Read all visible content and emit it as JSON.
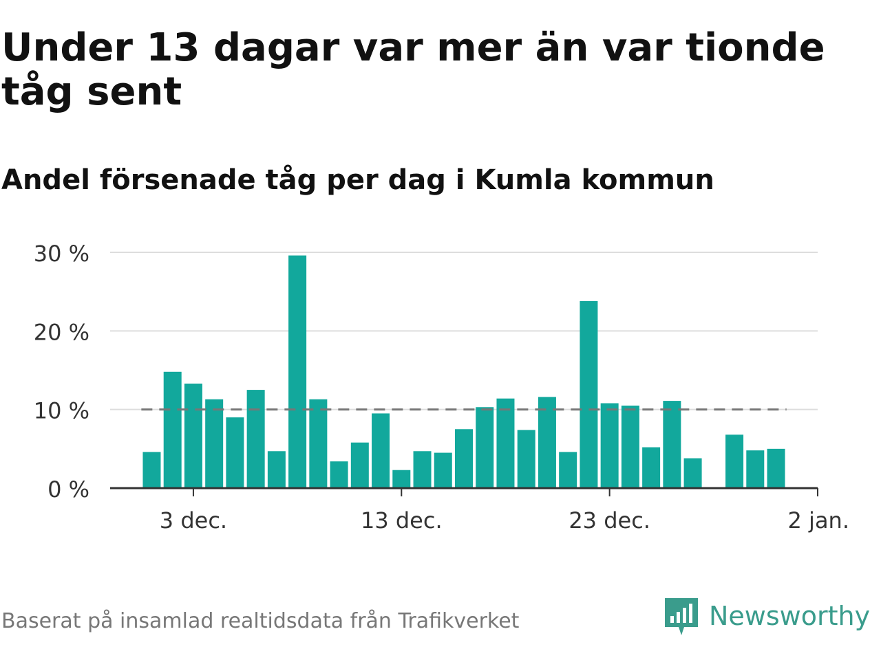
{
  "header": {
    "title": "Under 13 dagar var mer än var tionde tåg sent",
    "subtitle": "Andel försenade tåg per dag i Kumla kommun"
  },
  "footer": {
    "source": "Baserat på insamlad realtidsdata från Trafikverket",
    "brand": "Newsworthy",
    "brand_icon": "newsworthy-logo-icon"
  },
  "colors": {
    "bar": "#12a89c",
    "reference_line": "#777777",
    "gridline": "#dddddd",
    "axis": "#333333",
    "brand": "#3a9c8c"
  },
  "chart_data": {
    "type": "bar",
    "x": [
      "2023-12-01",
      "2023-12-02",
      "2023-12-03",
      "2023-12-04",
      "2023-12-05",
      "2023-12-06",
      "2023-12-07",
      "2023-12-08",
      "2023-12-09",
      "2023-12-10",
      "2023-12-11",
      "2023-12-12",
      "2023-12-13",
      "2023-12-14",
      "2023-12-15",
      "2023-12-16",
      "2023-12-17",
      "2023-12-18",
      "2023-12-19",
      "2023-12-20",
      "2023-12-21",
      "2023-12-22",
      "2023-12-23",
      "2023-12-24",
      "2023-12-25",
      "2023-12-26",
      "2023-12-27",
      "2023-12-28",
      "2023-12-29",
      "2023-12-30",
      "2023-12-31"
    ],
    "values": [
      4.6,
      14.8,
      13.3,
      11.3,
      9.0,
      12.5,
      4.7,
      29.6,
      11.3,
      3.4,
      5.8,
      9.5,
      2.3,
      4.7,
      4.5,
      7.5,
      10.3,
      11.4,
      7.4,
      11.6,
      4.6,
      23.8,
      10.8,
      10.5,
      5.2,
      11.1,
      3.8,
      null,
      6.8,
      4.8,
      5.0
    ],
    "reference_value": 10,
    "x_range": [
      "2023-11-29",
      "2024-01-02"
    ],
    "ylim": [
      0,
      30
    ],
    "y_ticks": [
      {
        "value": 0,
        "label": "0 %"
      },
      {
        "value": 10,
        "label": "10 %"
      },
      {
        "value": 20,
        "label": "20 %"
      },
      {
        "value": 30,
        "label": "30 %"
      }
    ],
    "x_ticks": [
      {
        "date": "2023-12-03",
        "label": "3 dec."
      },
      {
        "date": "2023-12-13",
        "label": "13 dec."
      },
      {
        "date": "2023-12-23",
        "label": "23 dec."
      },
      {
        "date": "2024-01-02",
        "label": "2 jan."
      }
    ],
    "grid": true,
    "legend": false
  }
}
